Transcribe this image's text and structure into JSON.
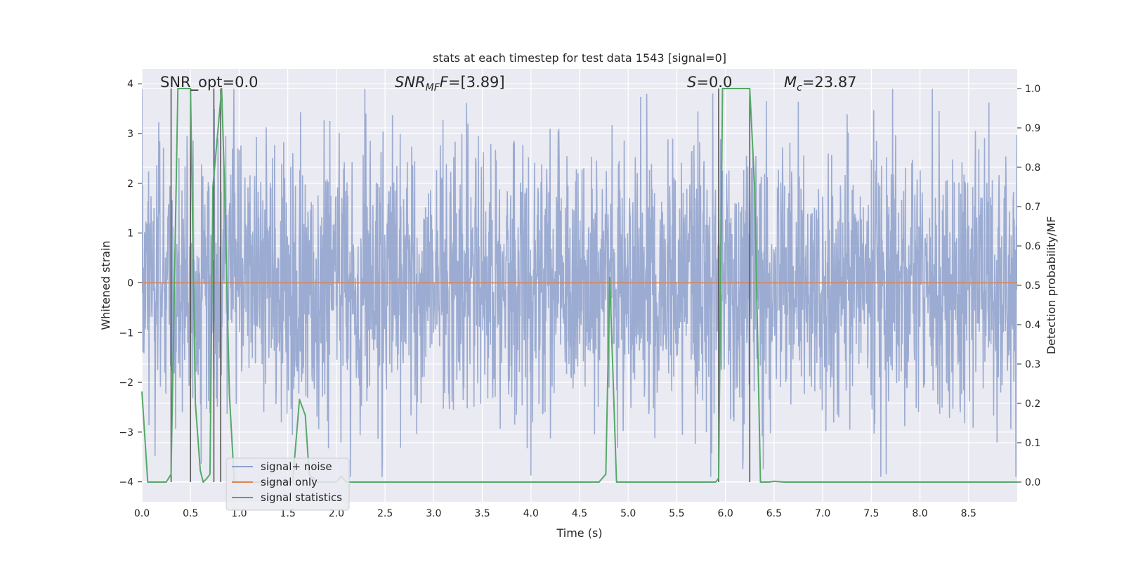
{
  "chart_data": {
    "type": "line",
    "title": "stats at each timestep for test data 1543 [signal=0]",
    "xlabel": "Time (s)",
    "ylabel_left": "Whitened strain",
    "ylabel_right": "Detection probability/MF",
    "xlim": [
      0.0,
      9.0
    ],
    "ylim_left": [
      -4.4,
      4.3
    ],
    "ylim_right": [
      -0.05,
      1.05
    ],
    "x_ticks": [
      "0.0",
      "0.5",
      "1.0",
      "1.5",
      "2.0",
      "2.5",
      "3.0",
      "3.5",
      "4.0",
      "4.5",
      "5.0",
      "5.5",
      "6.0",
      "6.5",
      "7.0",
      "7.5",
      "8.0",
      "8.5"
    ],
    "y_ticks_left": [
      "−4",
      "−3",
      "−2",
      "−1",
      "0",
      "1",
      "2",
      "3",
      "4"
    ],
    "y_ticks_right": [
      "0.0",
      "0.1",
      "0.2",
      "0.3",
      "0.4",
      "0.5",
      "0.6",
      "0.7",
      "0.8",
      "0.9",
      "1.0"
    ],
    "grid": true,
    "legend_position": "bottom-left",
    "annotations": {
      "snr_opt": "SNR_opt=0.0",
      "snr_mf_prefix": "SNR",
      "snr_mf_sub": "MF",
      "snr_mf_value": "=[3.89]",
      "s_prefix": "S",
      "s_value": "=0.0",
      "mc_prefix": "M",
      "mc_sub": "c",
      "mc_value": "=23.87"
    },
    "series": [
      {
        "name": "signal+ noise",
        "color": "#8da0cb",
        "axis": "left",
        "kind": "dense noise",
        "typical_amplitude": 1.6,
        "peak_amplitude": 3.9
      },
      {
        "name": "signal only",
        "color": "#dd8452",
        "axis": "left",
        "value": 0.0
      },
      {
        "name": "signal statistics",
        "color": "#55a868",
        "axis": "right",
        "x": [
          0.0,
          0.06,
          0.1,
          0.25,
          0.3,
          0.37,
          0.5,
          0.55,
          0.6,
          0.63,
          0.67,
          0.7,
          0.73,
          0.82,
          0.85,
          0.9,
          0.95,
          1.2,
          1.3,
          1.5,
          1.55,
          1.62,
          1.68,
          1.72,
          1.8,
          2.0,
          2.05,
          2.1,
          2.5,
          3.0,
          4.0,
          4.7,
          4.77,
          4.81,
          4.84,
          4.88,
          5.5,
          5.9,
          5.93,
          5.97,
          6.25,
          6.3,
          6.36,
          6.45,
          6.5,
          6.6,
          7.0,
          8.0,
          9.0
        ],
        "y": [
          0.23,
          0.0,
          0.0,
          0.0,
          0.02,
          1.0,
          1.0,
          0.2,
          0.03,
          0.0,
          0.01,
          0.02,
          0.75,
          1.0,
          0.75,
          0.22,
          0.0,
          0.0,
          0.0,
          0.0,
          0.0,
          0.21,
          0.17,
          0.02,
          0.0,
          0.0,
          0.015,
          0.0,
          0.0,
          0.0,
          0.0,
          0.0,
          0.02,
          0.52,
          0.3,
          0.0,
          0.0,
          0.0,
          0.01,
          1.0,
          1.0,
          0.75,
          0.0,
          0.0,
          0.002,
          0.0,
          0.0,
          0.0,
          0.0
        ]
      }
    ],
    "marker_lines": {
      "color": "#555555",
      "x": [
        0.3,
        0.5,
        0.74,
        0.81,
        5.93,
        6.25
      ]
    }
  }
}
